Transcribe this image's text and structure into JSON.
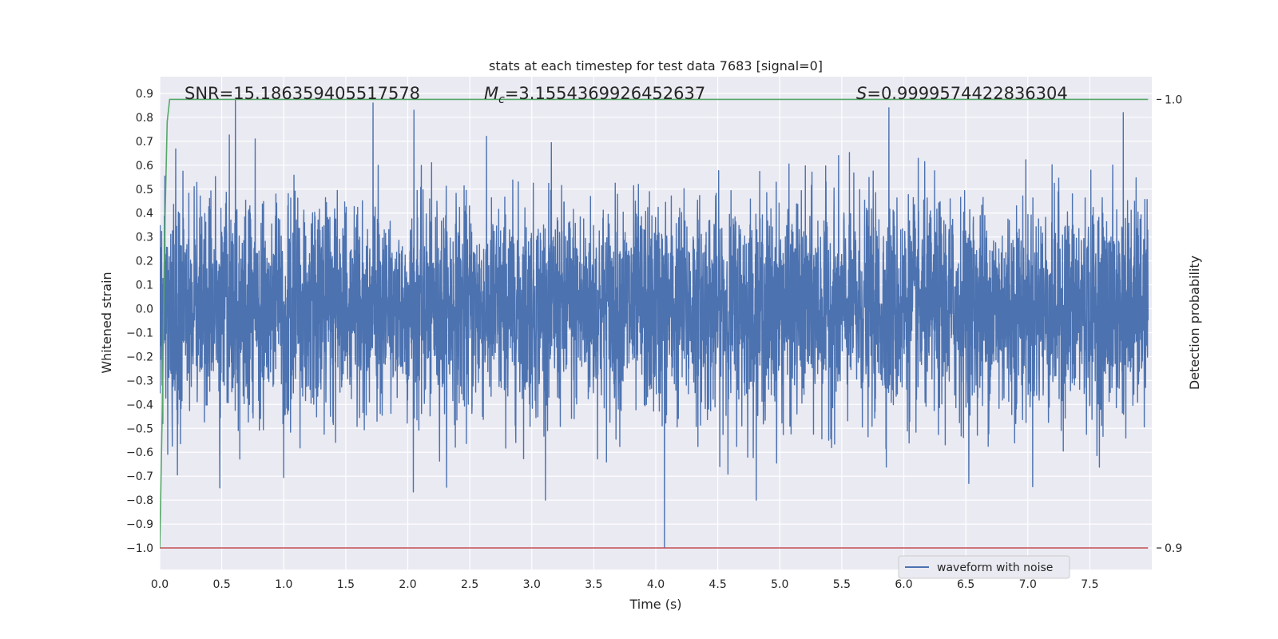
{
  "chart_data": {
    "type": "line",
    "title": "stats at each timestep for test data 7683 [signal=0]",
    "xlabel": "Time (s)",
    "ylabel": "Whitened strain",
    "y2label": "Detection probability",
    "xlim": [
      0.0,
      8.0
    ],
    "ylim": [
      -1.09,
      0.97
    ],
    "y2lim": [
      0.9,
      1.0
    ],
    "xticks": [
      "0.0",
      "0.5",
      "1.0",
      "1.5",
      "2.0",
      "2.5",
      "3.0",
      "3.5",
      "4.0",
      "4.5",
      "5.0",
      "5.5",
      "6.0",
      "6.5",
      "7.0",
      "7.5"
    ],
    "yticks": [
      "0.9",
      "0.8",
      "0.7",
      "0.6",
      "0.5",
      "0.4",
      "0.3",
      "0.2",
      "0.1",
      "0.0",
      "−0.1",
      "−0.2",
      "−0.3",
      "−0.4",
      "−0.5",
      "−0.6",
      "−0.7",
      "−0.8",
      "−0.9",
      "−1.0"
    ],
    "y2ticks": [
      "1.0",
      "0.9"
    ],
    "grid": true,
    "legend": {
      "placement": "lower-right",
      "entries": [
        "waveform with noise"
      ]
    },
    "annotations": {
      "snr_text": "SNR=15.186359405517578",
      "mc_symbol": "M",
      "mc_sub": "c",
      "mc_value": "=3.1554369926452637",
      "s_symbol": "S",
      "s_value": "=0.9999574422836304"
    },
    "series": [
      {
        "name": "waveform with noise",
        "color": "#4c72b0",
        "axis": "left",
        "description_points": {
          "x": [
            0.0,
            0.61,
            1.72,
            2.05,
            4.07,
            5.88,
            7.77
          ],
          "y": [
            0.1,
            0.88,
            0.86,
            0.83,
            -1.0,
            0.84,
            0.82
          ]
        },
        "typical_envelope": [
          -0.6,
          0.6
        ]
      },
      {
        "name": "",
        "color": "#55a868",
        "axis": "right",
        "x": [
          0.0,
          0.02,
          0.04,
          0.06,
          0.08,
          1.0,
          3.0,
          5.0,
          7.0,
          7.97
        ],
        "y": [
          0.9,
          0.93,
          0.97,
          0.995,
          1.0,
          1.0,
          1.0,
          1.0,
          1.0,
          1.0
        ]
      },
      {
        "name": "",
        "color": "#c44e52",
        "axis": "left",
        "x": [
          0.0,
          7.97
        ],
        "y": [
          -1.0,
          -1.0
        ]
      }
    ]
  }
}
